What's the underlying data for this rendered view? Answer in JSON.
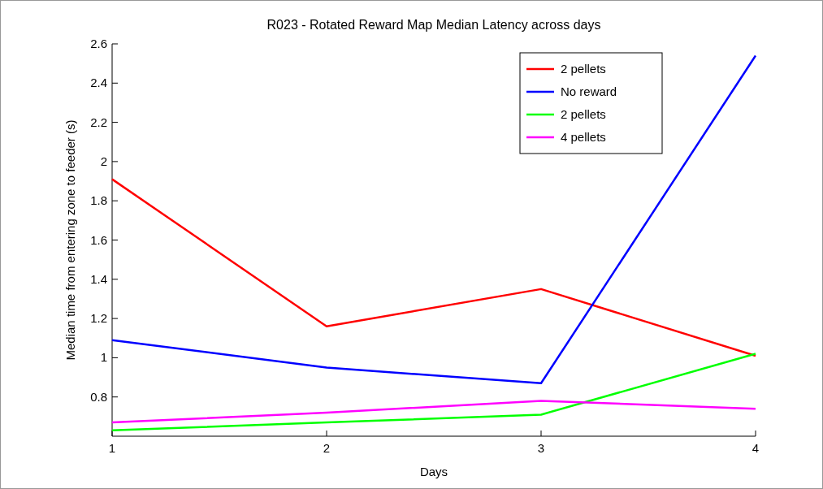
{
  "chart_data": {
    "type": "line",
    "title": "R023 - Rotated Reward Map Median Latency across days",
    "xlabel": "Days",
    "ylabel": "Median time from entering zone to feeder (s)",
    "x": [
      1,
      2,
      3,
      4
    ],
    "xlim": [
      1,
      4
    ],
    "xticks": [
      1,
      2,
      3,
      4
    ],
    "ylim": [
      0.6,
      2.6
    ],
    "yticks": [
      0.8,
      1,
      1.2,
      1.4,
      1.6,
      1.8,
      2,
      2.2,
      2.4,
      2.6
    ],
    "legend": "top right",
    "grid": false,
    "marker": "none",
    "line_style": "solid",
    "series": [
      {
        "name": "2 pellets",
        "color": "#ff0000",
        "values": [
          1.91,
          1.16,
          1.35,
          1.01
        ]
      },
      {
        "name": "No reward",
        "color": "#0000ff",
        "values": [
          1.09,
          0.95,
          0.87,
          2.54
        ]
      },
      {
        "name": "2 pellets",
        "color": "#00ff00",
        "values": [
          0.63,
          0.67,
          0.71,
          1.02
        ]
      },
      {
        "name": "4 pellets",
        "color": "#ff00ff",
        "values": [
          0.67,
          0.72,
          0.78,
          0.74
        ]
      }
    ]
  }
}
